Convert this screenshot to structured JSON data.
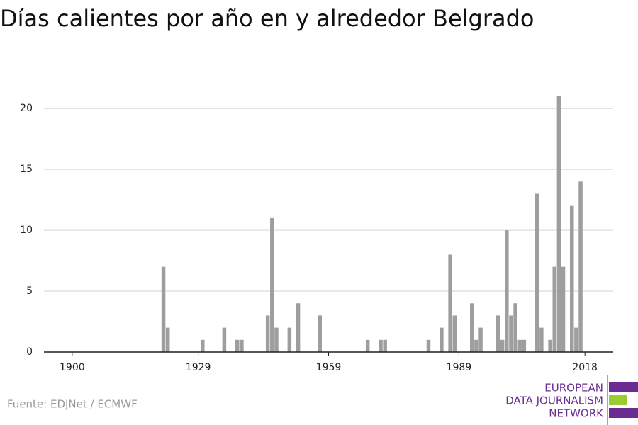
{
  "chart_data": {
    "type": "bar",
    "title": "Días calientes por año en y alrededor Belgrado",
    "source": "Fuente: EDJNet / ECMWF",
    "logo": [
      "EUROPEAN",
      "DATA JOURNALISM",
      "NETWORK"
    ],
    "color": "#9e9e9e",
    "x": [
      1921,
      1922,
      1930,
      1935,
      1938,
      1939,
      1945,
      1946,
      1947,
      1950,
      1952,
      1957,
      1968,
      1971,
      1972,
      1982,
      1985,
      1987,
      1988,
      1992,
      1993,
      1994,
      1998,
      1999,
      2000,
      2001,
      2002,
      2003,
      2004,
      2007,
      2008,
      2010,
      2011,
      2012,
      2013,
      2015,
      2016,
      2017
    ],
    "values": [
      7,
      2,
      1,
      2,
      1,
      1,
      3,
      11,
      2,
      2,
      4,
      3,
      1,
      1,
      1,
      1,
      2,
      8,
      3,
      4,
      1,
      2,
      3,
      1,
      10,
      3,
      4,
      1,
      1,
      13,
      2,
      1,
      7,
      21,
      7,
      12,
      2,
      14
    ],
    "xlim": [
      1893.5,
      2024.5
    ],
    "xticks": [
      1900,
      1929,
      1959,
      1989,
      2018
    ],
    "ylim": [
      0,
      21
    ],
    "yticks": [
      0,
      5,
      10,
      15,
      20
    ],
    "grid": true
  }
}
